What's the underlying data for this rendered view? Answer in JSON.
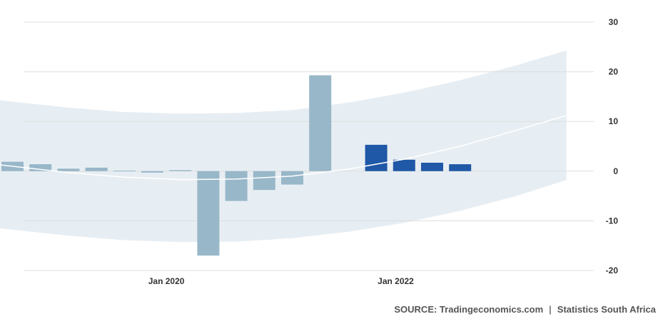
{
  "chart_data": {
    "type": "bar",
    "title": "",
    "xlabel": "",
    "ylabel": "",
    "ylim": [
      -20,
      30
    ],
    "yticks": [
      30,
      20,
      10,
      0,
      -10,
      -20
    ],
    "xtick_labels": [
      {
        "label": "Jan 2020",
        "index": 5.5
      },
      {
        "label": "Jan 2022",
        "index": 13.7
      }
    ],
    "grid": true,
    "values": [
      1.9,
      1.4,
      0.5,
      0.7,
      0.1,
      -0.3,
      0.2,
      -17.0,
      -6.0,
      -3.8,
      -2.7,
      19.3,
      0,
      5.3,
      2.3,
      1.7,
      1.4
    ],
    "bar_colors": [
      "#98b7c9",
      "#98b7c9",
      "#98b7c9",
      "#98b7c9",
      "#98b7c9",
      "#98b7c9",
      "#98b7c9",
      "#98b7c9",
      "#98b7c9",
      "#98b7c9",
      "#98b7c9",
      "#98b7c9",
      "#98b7c9",
      "#1f58a6",
      "#1f58a6",
      "#1f58a6",
      "#1f58a6"
    ],
    "trend": {
      "index": [
        -0.5,
        2,
        4,
        6,
        8,
        10,
        12,
        14,
        16,
        18,
        19.8
      ],
      "values": [
        1.3,
        -0.3,
        -1.2,
        -1.7,
        -1.6,
        -1.0,
        0.4,
        2.4,
        5.0,
        8.2,
        11.2
      ]
    },
    "band": {
      "index": [
        -0.5,
        2,
        4,
        6,
        8,
        10,
        12,
        14,
        16,
        18,
        19.8
      ],
      "upper": [
        14.3,
        12.8,
        11.9,
        11.6,
        11.7,
        12.3,
        13.8,
        15.8,
        18.3,
        21.3,
        24.3
      ],
      "lower": [
        -11.5,
        -13.0,
        -13.9,
        -14.3,
        -14.2,
        -13.5,
        -12.2,
        -10.4,
        -8.0,
        -5.0,
        -1.8
      ]
    },
    "colors": {
      "band": "#e7eef3",
      "trend": "#ffffff",
      "grid": "#dddddd",
      "bar_past": "#98b7c9",
      "bar_recent": "#1f58a6"
    }
  },
  "source": {
    "label": "SOURCE: Tradingeconomics.com",
    "separator": "|",
    "provider": "Statistics South Africa"
  }
}
